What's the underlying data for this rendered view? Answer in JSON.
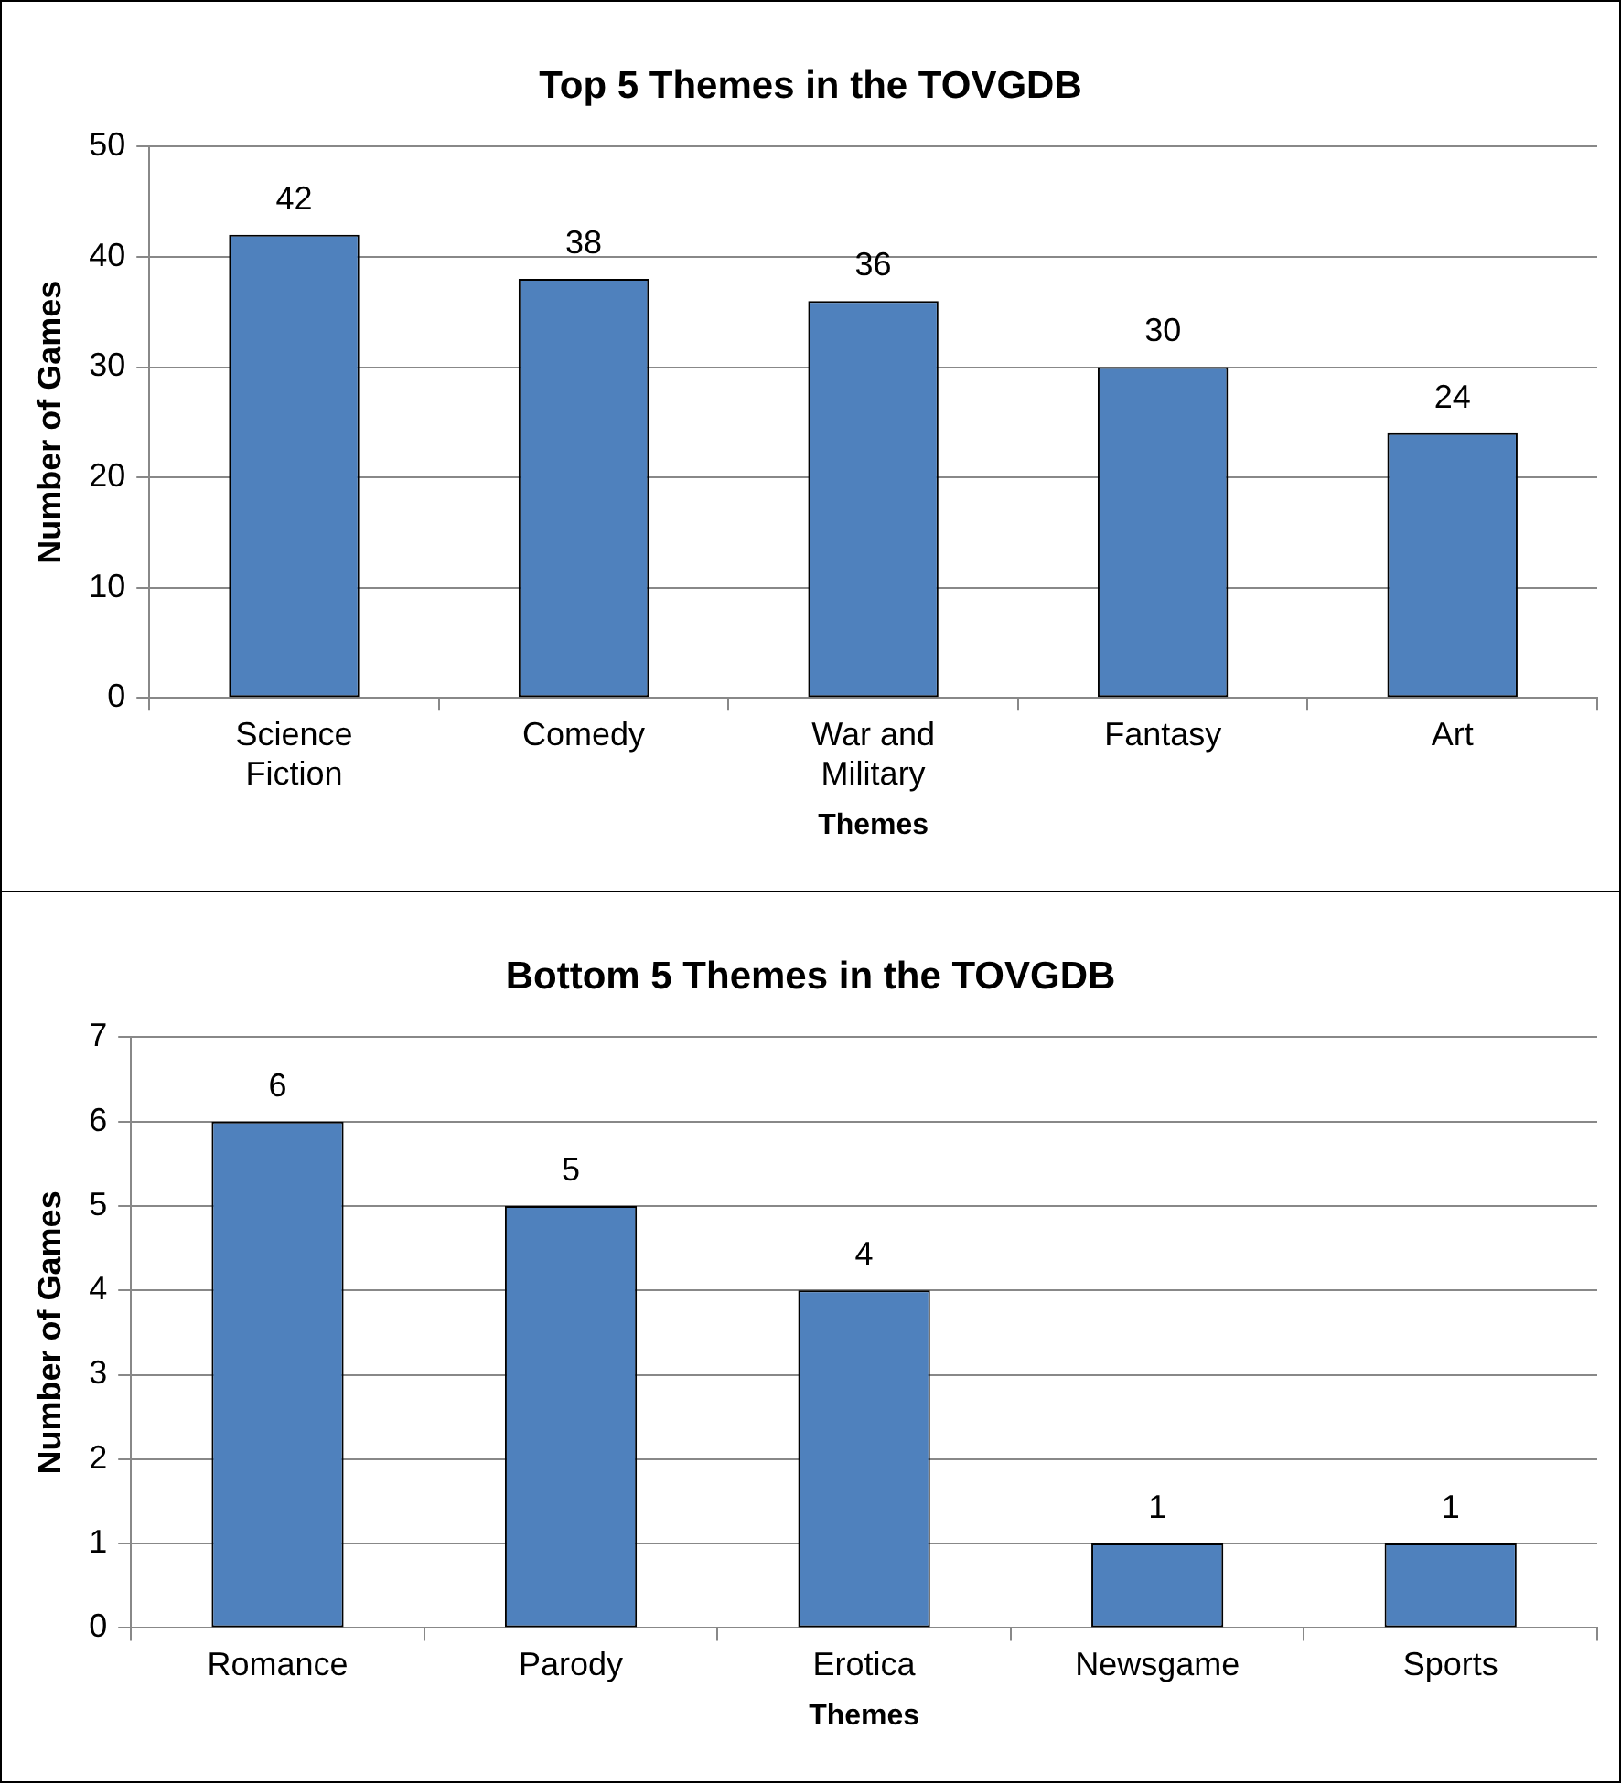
{
  "chart_data": [
    {
      "type": "bar",
      "title": "Top 5 Themes in the TOVGDB",
      "xlabel": "Themes",
      "ylabel": "Number of Games",
      "categories": [
        "Science Fiction",
        "Comedy",
        "War and Military",
        "Fantasy",
        "Art"
      ],
      "values": [
        42,
        38,
        36,
        30,
        24
      ],
      "color": "#4f81bd",
      "ylim": [
        0,
        50
      ],
      "yticks": [
        0,
        10,
        20,
        30,
        40,
        50
      ],
      "grid": "y",
      "data_labels": true,
      "legend": false
    },
    {
      "type": "bar",
      "title": "Bottom 5 Themes in the TOVGDB",
      "xlabel": "Themes",
      "ylabel": "Number of Games",
      "categories": [
        "Romance",
        "Parody",
        "Erotica",
        "Newsgame",
        "Sports"
      ],
      "values": [
        6,
        5,
        4,
        1,
        1
      ],
      "color": "#4f81bd",
      "ylim": [
        0,
        7
      ],
      "yticks": [
        0,
        1,
        2,
        3,
        4,
        5,
        6,
        7
      ],
      "grid": "y",
      "data_labels": true,
      "legend": false
    }
  ]
}
